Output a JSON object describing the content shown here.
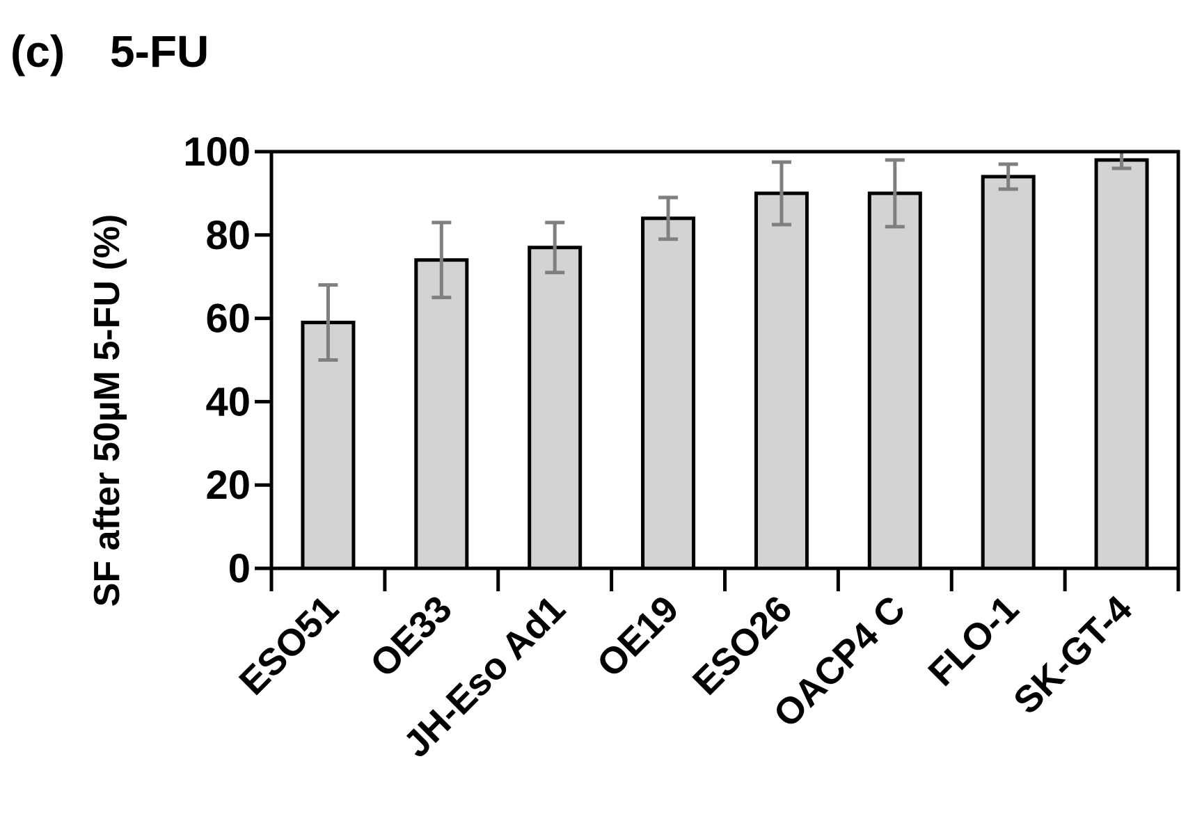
{
  "chart_data": {
    "type": "bar",
    "panel_label": "(c)",
    "title": "5-FU",
    "ylabel": "SF after 50µM 5-FU (%)",
    "xlabel": "",
    "categories": [
      "ESO51",
      "OE33",
      "JH-Eso Ad1",
      "OE19",
      "ESO26",
      "OACP4 C",
      "FLO-1",
      "SK-GT-4"
    ],
    "series": [
      {
        "values": [
          59,
          74,
          77,
          84,
          90,
          90,
          94,
          98
        ],
        "error": [
          9,
          9,
          6,
          5,
          7.5,
          8,
          3,
          2
        ]
      }
    ],
    "yticks": [
      0,
      20,
      40,
      60,
      80,
      100
    ],
    "ylim": [
      0,
      100
    ],
    "grid": false,
    "legend": "none",
    "colors": {
      "bar_fill": "#d3d3d3",
      "bar_stroke": "#000000",
      "error_bar": "#7f7f7f",
      "axis": "#000000"
    }
  }
}
